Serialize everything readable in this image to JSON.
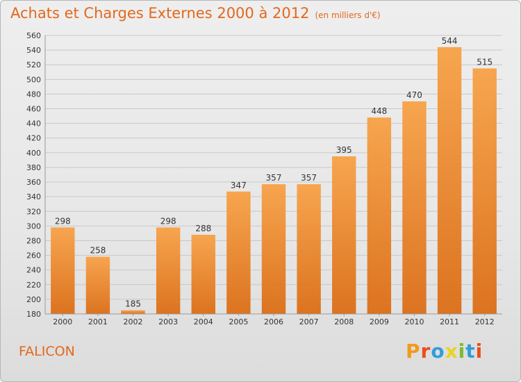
{
  "header": {
    "title": "Achats et Charges Externes 2000 à 2012",
    "unit": "(en milliers d'€)"
  },
  "footer": {
    "city": "FALICON",
    "logo_text": "Proxiti",
    "logo_letters": [
      {
        "char": "P",
        "color": "#f29a1e"
      },
      {
        "char": "r",
        "color": "#e94e1b"
      },
      {
        "char": "o",
        "color": "#2f9fd8"
      },
      {
        "char": "x",
        "color": "#e8d51e"
      },
      {
        "char": "i",
        "color": "#7dbb2a"
      },
      {
        "char": "t",
        "color": "#2f9fd8"
      },
      {
        "char": "i",
        "color": "#e94e1b"
      }
    ]
  },
  "colors": {
    "accent": "#e2681c",
    "bar_top": "#f7a54f",
    "bar_bottom": "#dc7320",
    "grid": "#c8c8c8"
  },
  "chart_data": {
    "type": "bar",
    "categories": [
      "2000",
      "2001",
      "2002",
      "2003",
      "2004",
      "2005",
      "2006",
      "2007",
      "2008",
      "2009",
      "2010",
      "2011",
      "2012"
    ],
    "values": [
      298,
      258,
      185,
      298,
      288,
      347,
      357,
      357,
      395,
      448,
      470,
      544,
      515
    ],
    "title": "Achats et Charges Externes 2000 à 2012",
    "ylim": [
      180,
      560
    ],
    "yticks": [
      180,
      200,
      220,
      240,
      260,
      280,
      300,
      320,
      340,
      360,
      380,
      400,
      420,
      440,
      460,
      480,
      500,
      520,
      540,
      560
    ],
    "grid": true
  }
}
